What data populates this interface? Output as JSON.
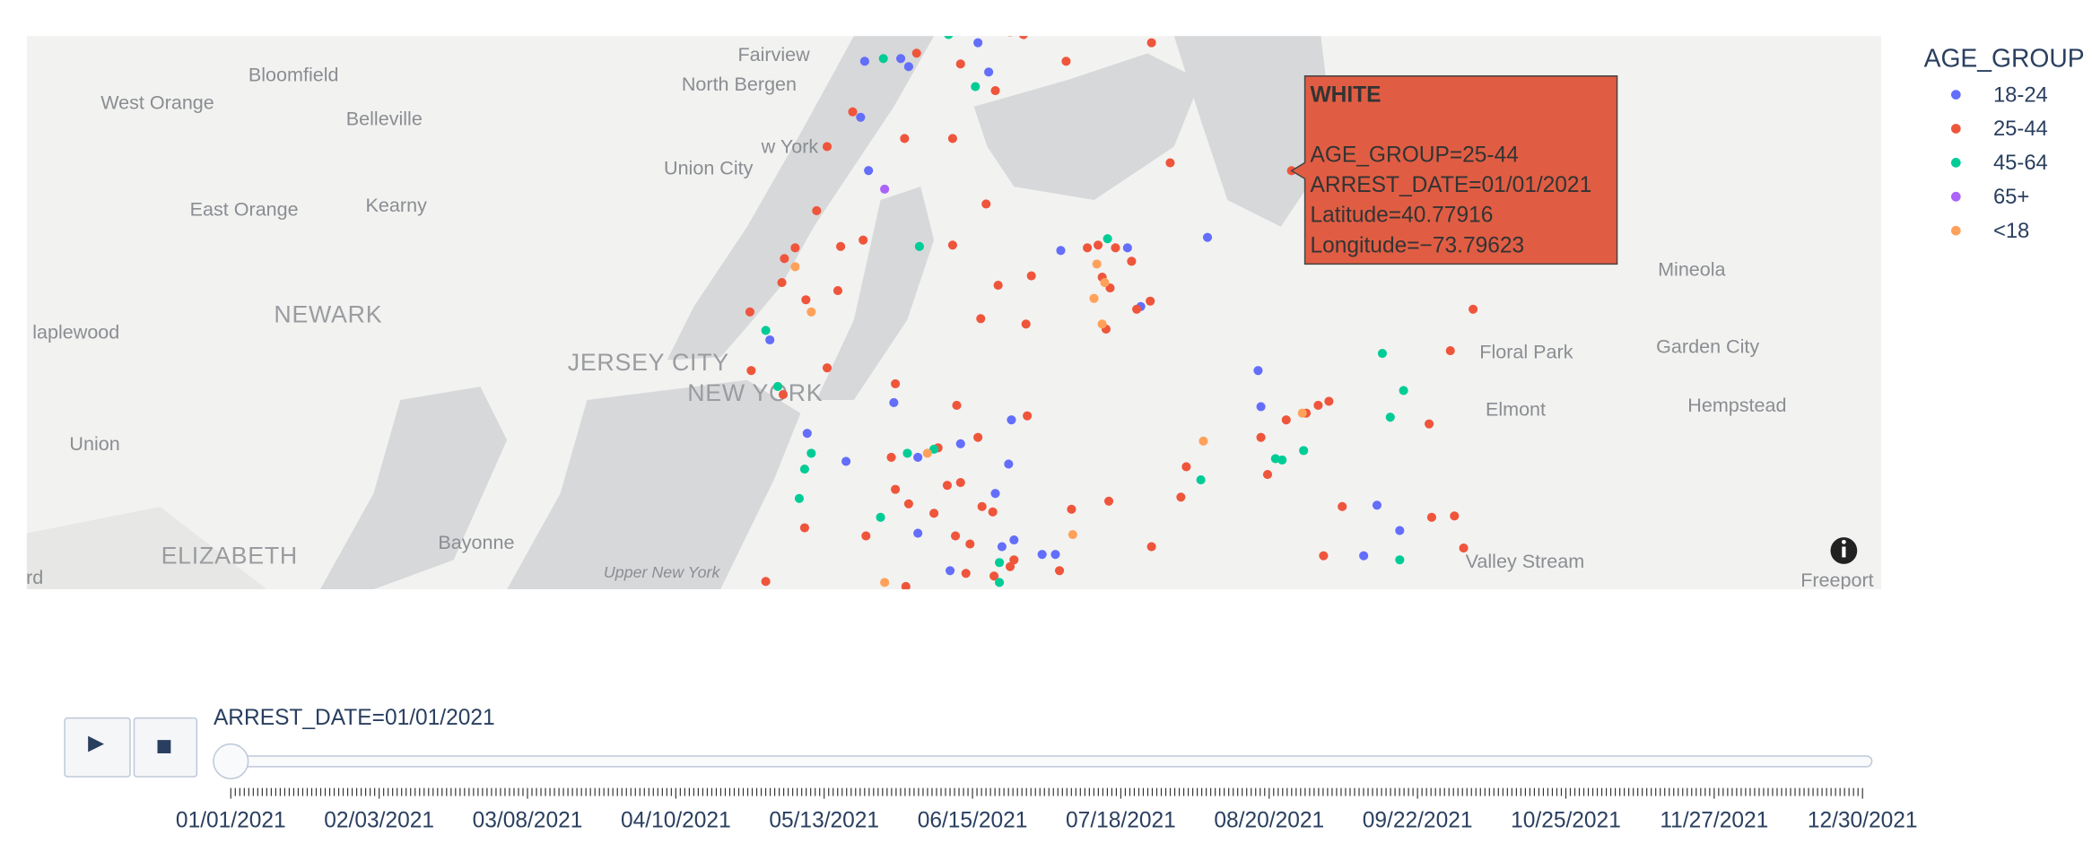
{
  "chart_data": {
    "type": "scattermapbox",
    "legend_title": "AGE_GROUP",
    "series": [
      {
        "name": "18-24",
        "color": "#636efa",
        "lat": [
          40.8171,
          40.8124,
          40.81,
          40.8084,
          40.7792,
          40.795,
          40.7555,
          40.7563,
          40.7594,
          40.7389,
          40.7199,
          40.7092,
          40.68,
          40.6725,
          40.665,
          40.729,
          40.7013,
          40.693,
          40.7104,
          40.6942,
          40.6982,
          40.6922,
          40.7053,
          40.6835,
          40.6717,
          40.6606,
          40.6677,
          40.6654,
          40.6654,
          40.6697,
          40.8116
        ],
        "lon": [
          -73.9189,
          -73.9491,
          -73.946,
          -73.9147,
          -73.9617,
          -73.9648,
          -73.8865,
          -73.8604,
          -73.8291,
          -73.8552,
          -73.8093,
          -73.8082,
          -73.7628,
          -73.7539,
          -73.768,
          -74.0003,
          -73.9857,
          -73.9705,
          -73.9518,
          -73.9424,
          -73.9257,
          -73.9069,
          -73.9058,
          -73.9121,
          -73.9424,
          -73.9298,
          -73.9095,
          -73.8938,
          -73.8886,
          -73.9048,
          -73.9632
        ]
      },
      {
        "name": "25-44",
        "color": "#ef553b",
        "lat": [
          40.77916,
          40.8203,
          40.8195,
          40.8171,
          40.8116,
          40.814,
          40.8108,
          40.8029,
          40.7887,
          40.7887,
          40.7863,
          40.7966,
          40.7815,
          40.7693,
          40.7673,
          40.7567,
          40.7563,
          40.7531,
          40.746,
          40.7436,
          40.7409,
          40.7373,
          40.7586,
          40.7571,
          40.7452,
          40.748,
          40.7563,
          40.7571,
          40.7563,
          40.7476,
          40.7444,
          40.7523,
          40.7405,
          40.7381,
          40.7337,
          40.7353,
          40.7322,
          40.7207,
          40.7199,
          40.7128,
          40.716,
          40.7096,
          40.7001,
          40.7065,
          40.697,
          40.6867,
          40.6859,
          40.6942,
          40.6804,
          40.6847,
          40.6776,
          40.6796,
          40.678,
          40.6788,
          40.6812,
          40.6824,
          40.6914,
          40.7001,
          40.6891,
          40.7053,
          40.7073,
          40.7096,
          40.7108,
          40.6796,
          40.7041,
          40.6764,
          40.6768,
          40.6673,
          40.7258,
          40.7381,
          40.6677,
          40.665,
          40.6606,
          40.6618,
          40.659,
          40.6685,
          40.6709,
          40.6733,
          40.6709,
          40.6574,
          40.6559,
          40.6598,
          40.6638
        ],
        "lon": [
          -73.79623,
          -73.9063,
          -73.9011,
          -73.851,
          -73.8844,
          -73.9429,
          -73.9257,
          -73.9121,
          -73.9288,
          -73.9476,
          -73.9779,
          -73.9679,
          -73.8437,
          -73.9157,
          -73.982,
          -73.9726,
          -73.9904,
          -73.9946,
          -73.9956,
          -73.9737,
          -73.9862,
          -74.0081,
          -73.9638,
          -73.9288,
          -73.911,
          -73.898,
          -73.8761,
          -73.8719,
          -73.8651,
          -73.8703,
          -73.8672,
          -73.8588,
          -73.8515,
          -73.8568,
          -73.9001,
          -73.9178,
          -73.8688,
          -73.9779,
          -74.0076,
          -73.9951,
          -73.9512,
          -73.9272,
          -73.9189,
          -73.8996,
          -73.9345,
          -73.9257,
          -73.9309,
          -73.9528,
          -73.946,
          -73.9512,
          -73.9361,
          -73.9173,
          -73.9131,
          -73.8823,
          -73.8677,
          -73.8395,
          -73.8374,
          -73.8082,
          -73.8056,
          -73.7983,
          -73.7905,
          -73.7858,
          -73.7816,
          -73.7764,
          -73.7424,
          -73.7414,
          -73.7325,
          -73.7289,
          -73.7341,
          -73.7252,
          -73.851,
          -73.7837,
          -73.887,
          -73.9063,
          -73.9126,
          -73.922,
          -73.9277,
          -73.9867,
          -73.9627,
          -74.0019,
          -73.9471,
          -73.9236,
          -73.9048
        ]
      },
      {
        "name": "45-64",
        "color": "#00cc96",
        "lat": [
          40.8195,
          40.8124,
          40.8041,
          40.7567,
          40.759,
          40.7318,
          40.7152,
          40.6954,
          40.6907,
          40.6966,
          40.6954,
          40.6764,
          40.682,
          40.663,
          40.6571,
          40.6875,
          40.6938,
          40.6934,
          40.6962,
          40.725,
          40.714,
          40.7061,
          40.6638
        ],
        "lon": [
          -73.9304,
          -73.9559,
          -73.9199,
          -73.9418,
          -73.8682,
          -74.0019,
          -73.9972,
          -73.9841,
          -73.9867,
          -73.9361,
          -73.9465,
          -73.957,
          -73.9888,
          -73.9105,
          -73.9105,
          -73.8317,
          -73.8025,
          -73.7999,
          -73.7915,
          -73.7607,
          -73.7524,
          -73.7576,
          -73.7539
        ]
      },
      {
        "name": "65+",
        "color": "#ab63fa",
        "lat": [
          40.7737
        ],
        "lon": [
          -73.9554
        ]
      },
      {
        "name": "<18",
        "color": "#ffa15a",
        "lat": [
          40.7507,
          40.7373,
          40.7515,
          40.746,
          40.7413,
          40.7337,
          40.6954,
          40.699,
          40.7073,
          40.6713,
          40.6571
        ],
        "lon": [
          -73.9904,
          -73.9841,
          -73.8724,
          -73.8693,
          -73.8735,
          -73.8703,
          -73.9387,
          -73.8307,
          -73.792,
          -73.8818,
          -73.9554
        ]
      }
    ],
    "hover": {
      "title": "WHITE",
      "lines": [
        "AGE_GROUP=25-44",
        "ARREST_DATE=01/01/2021",
        "Latitude=40.77916",
        "Longitude=−73.79623"
      ]
    },
    "map_labels": [
      "Fairview",
      "North Bergen",
      "West Orange",
      "Bloomfield",
      "Belleville",
      "w York",
      "Union City",
      "East Orange",
      "Kearny",
      "NEWARK",
      "laplewood",
      "JERSEY CITY",
      "NEW YORK",
      "Union",
      "Bayonne",
      "ELIZABETH",
      "rd",
      "Upper New York",
      "Mineola",
      "Floral Park",
      "Garden City",
      "Elmont",
      "Hempstead",
      "Valley Stream",
      "Freeport"
    ],
    "slider": {
      "current_label": "ARREST_DATE=01/01/2021",
      "tick_labels": [
        "01/01/2021",
        "02/03/2021",
        "03/08/2021",
        "04/10/2021",
        "05/13/2021",
        "06/15/2021",
        "07/18/2021",
        "08/20/2021",
        "09/22/2021",
        "10/25/2021",
        "11/27/2021",
        "12/30/2021"
      ]
    }
  }
}
